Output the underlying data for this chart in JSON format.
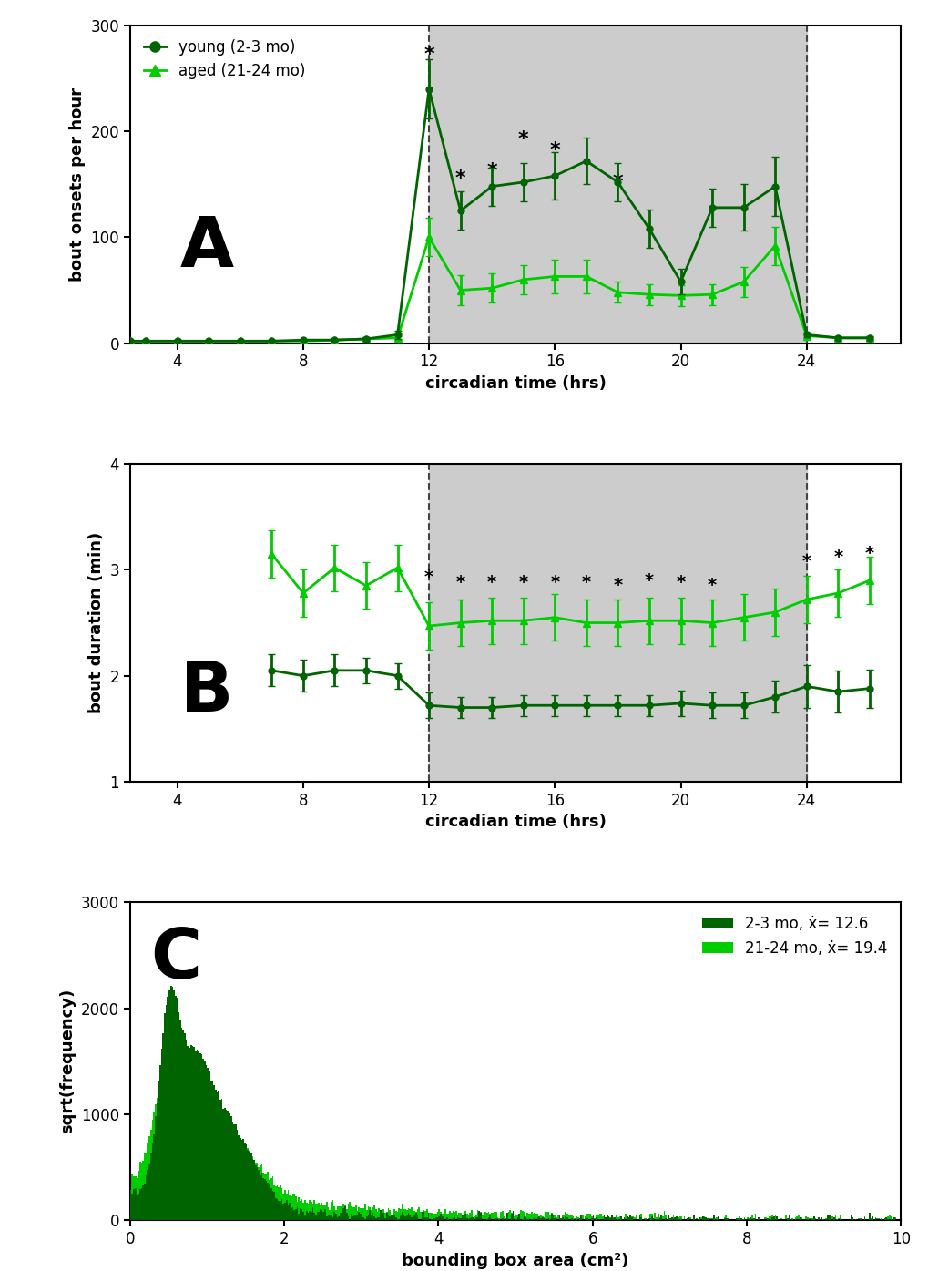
{
  "panel_A": {
    "ylabel": "bout onsets per hour",
    "xlabel": "circadian time (hrs)",
    "dark_region": [
      12,
      24
    ],
    "xlim": [
      2.5,
      27
    ],
    "xticks": [
      4,
      8,
      12,
      16,
      20,
      24
    ],
    "ylim": [
      0,
      300
    ],
    "yticks": [
      0,
      100,
      200,
      300
    ],
    "young_color": "#006400",
    "aged_color": "#00cc00",
    "young_x": [
      2.5,
      3,
      4,
      5,
      6,
      7,
      8,
      9,
      10,
      11,
      12,
      13,
      14,
      15,
      16,
      17,
      18,
      19,
      20,
      21,
      22,
      23,
      24,
      25,
      26
    ],
    "young_y": [
      2,
      2,
      2,
      2,
      2,
      2,
      3,
      3,
      4,
      8,
      240,
      125,
      148,
      152,
      158,
      172,
      152,
      108,
      58,
      128,
      128,
      148,
      8,
      5,
      5
    ],
    "young_yerr": [
      1,
      1,
      1,
      1,
      1,
      1,
      1,
      1,
      2,
      4,
      28,
      18,
      18,
      18,
      22,
      22,
      18,
      18,
      12,
      18,
      22,
      28,
      2,
      2,
      2
    ],
    "aged_x": [
      2.5,
      3,
      4,
      5,
      6,
      7,
      8,
      9,
      10,
      11,
      12,
      13,
      14,
      15,
      16,
      17,
      18,
      19,
      20,
      21,
      22,
      23,
      24,
      25,
      26
    ],
    "aged_y": [
      2,
      2,
      2,
      2,
      2,
      2,
      2,
      3,
      4,
      5,
      100,
      50,
      52,
      60,
      63,
      63,
      48,
      46,
      45,
      46,
      58,
      92,
      7,
      5,
      5
    ],
    "aged_yerr": [
      1,
      1,
      1,
      1,
      1,
      1,
      1,
      1,
      2,
      2,
      18,
      14,
      14,
      14,
      16,
      16,
      10,
      10,
      10,
      10,
      14,
      18,
      2,
      2,
      2
    ],
    "asterisk_x": [
      12,
      13,
      14,
      15,
      16,
      18
    ],
    "asterisk_y": [
      272,
      155,
      162,
      192,
      182,
      152
    ],
    "legend_labels": [
      "young (2-3 mo)",
      "aged (21-24 mo)"
    ]
  },
  "panel_B": {
    "ylabel": "bout duration (min)",
    "xlabel": "circadian time (hrs)",
    "dark_region": [
      12,
      24
    ],
    "xlim": [
      2.5,
      27
    ],
    "xticks": [
      4,
      8,
      12,
      16,
      20,
      24
    ],
    "ylim": [
      1,
      4
    ],
    "yticks": [
      1,
      2,
      3,
      4
    ],
    "young_color": "#006400",
    "aged_color": "#00cc00",
    "young_x": [
      7,
      8,
      9,
      10,
      11,
      12,
      13,
      14,
      15,
      16,
      17,
      18,
      19,
      20,
      21,
      22,
      23,
      24,
      25,
      26
    ],
    "young_y": [
      2.05,
      2.0,
      2.05,
      2.05,
      2.0,
      1.72,
      1.7,
      1.7,
      1.72,
      1.72,
      1.72,
      1.72,
      1.72,
      1.74,
      1.72,
      1.72,
      1.8,
      1.9,
      1.85,
      1.88
    ],
    "young_yerr": [
      0.15,
      0.15,
      0.15,
      0.12,
      0.12,
      0.12,
      0.1,
      0.1,
      0.1,
      0.1,
      0.1,
      0.1,
      0.1,
      0.12,
      0.12,
      0.12,
      0.15,
      0.2,
      0.2,
      0.18
    ],
    "aged_x": [
      7,
      8,
      9,
      10,
      11,
      12,
      13,
      14,
      15,
      16,
      17,
      18,
      19,
      20,
      21,
      22,
      23,
      24,
      25,
      26
    ],
    "aged_y": [
      3.15,
      2.78,
      3.02,
      2.85,
      3.02,
      2.47,
      2.5,
      2.52,
      2.52,
      2.55,
      2.5,
      2.5,
      2.52,
      2.52,
      2.5,
      2.55,
      2.6,
      2.72,
      2.78,
      2.9
    ],
    "aged_yerr": [
      0.22,
      0.22,
      0.22,
      0.22,
      0.22,
      0.22,
      0.22,
      0.22,
      0.22,
      0.22,
      0.22,
      0.22,
      0.22,
      0.22,
      0.22,
      0.22,
      0.22,
      0.22,
      0.22,
      0.22
    ],
    "asterisk_x": [
      12,
      13,
      14,
      15,
      16,
      17,
      18,
      19,
      20,
      21,
      24,
      25,
      26
    ],
    "asterisk_y": [
      2.93,
      2.88,
      2.88,
      2.88,
      2.88,
      2.88,
      2.85,
      2.9,
      2.88,
      2.85,
      3.08,
      3.12,
      3.15
    ]
  },
  "panel_C": {
    "ylabel": "sqrt(frequency)",
    "xlabel": "bounding box area (cm²)",
    "xlim": [
      0,
      10
    ],
    "ylim": [
      0,
      3000
    ],
    "yticks": [
      0,
      1000,
      2000,
      3000
    ],
    "xticks": [
      0,
      2,
      4,
      6,
      8,
      10
    ],
    "young_color": "#006400",
    "aged_color": "#00cc00",
    "legend_label_young": "2-3 mo, ẋ= 12.6",
    "legend_label_aged": "21-24 mo, ẋ= 19.4"
  },
  "figure_bg": "#ffffff",
  "dark_cycle_color": "#cccccc",
  "dashed_line_color": "#444444"
}
